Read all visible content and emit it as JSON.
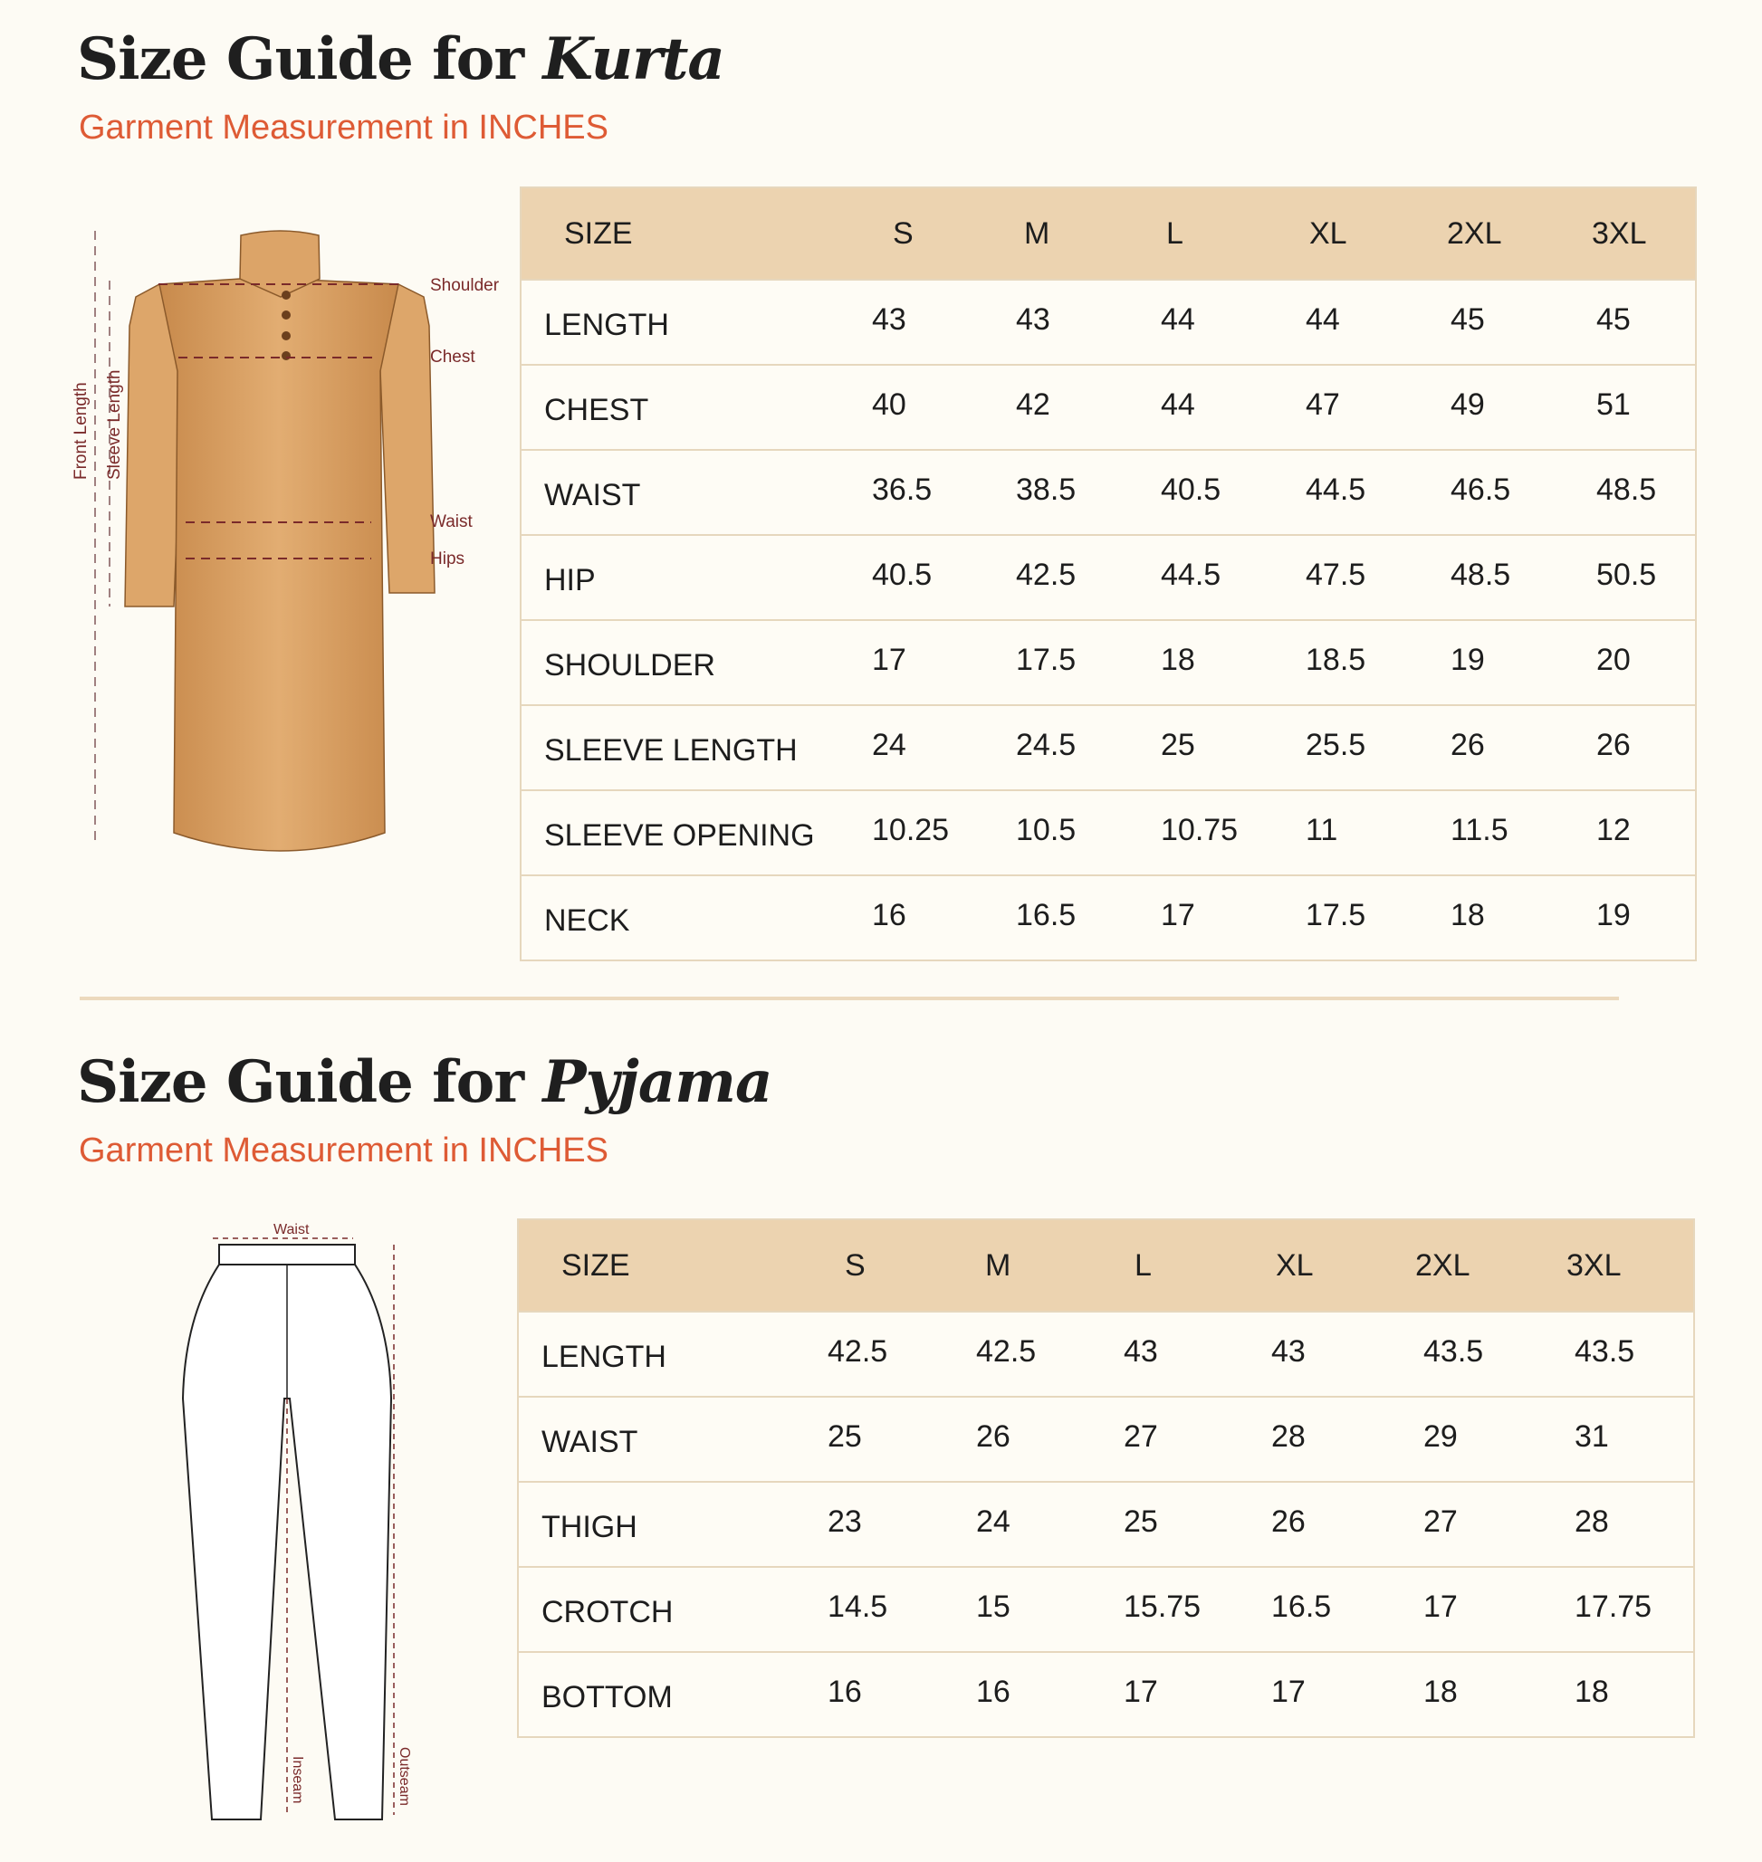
{
  "kurta": {
    "title_prefix": "Size Guide for ",
    "title_garment": "Kurta",
    "subtitle": "Garment Measurement in INCHES",
    "diagram_labels": {
      "shoulder": "Shoulder",
      "chest": "Chest",
      "waist": "Waist",
      "hips": "Hips",
      "front_length": "Front Length",
      "sleeve_length": "Sleeve Length"
    },
    "headers": [
      "SIZE",
      "S",
      "M",
      "L",
      "XL",
      "2XL",
      "3XL"
    ],
    "rows": [
      {
        "label": "LENGTH",
        "values": [
          "43",
          "43",
          "44",
          "44",
          "45",
          "45"
        ]
      },
      {
        "label": "CHEST",
        "values": [
          "40",
          "42",
          "44",
          "47",
          "49",
          "51"
        ]
      },
      {
        "label": "WAIST",
        "values": [
          "36.5",
          "38.5",
          "40.5",
          "44.5",
          "46.5",
          "48.5"
        ]
      },
      {
        "label": "HIP",
        "values": [
          "40.5",
          "42.5",
          "44.5",
          "47.5",
          "48.5",
          "50.5"
        ]
      },
      {
        "label": "SHOULDER",
        "values": [
          "17",
          "17.5",
          "18",
          "18.5",
          "19",
          "20"
        ]
      },
      {
        "label": "SLEEVE LENGTH",
        "values": [
          "24",
          "24.5",
          "25",
          "25.5",
          "26",
          "26"
        ]
      },
      {
        "label": "SLEEVE OPENING",
        "values": [
          "10.25",
          "10.5",
          "10.75",
          "11",
          "11.5",
          "12"
        ]
      },
      {
        "label": "NECK",
        "values": [
          "16",
          "16.5",
          "17",
          "17.5",
          "18",
          "19"
        ]
      }
    ]
  },
  "pyjama": {
    "title_prefix": "Size Guide for ",
    "title_garment": "Pyjama",
    "subtitle": "Garment Measurement in INCHES",
    "diagram_labels": {
      "waist": "Waist",
      "inseam": "Inseam",
      "outseam": "Outseam"
    },
    "headers": [
      "SIZE",
      "S",
      "M",
      "L",
      "XL",
      "2XL",
      "3XL"
    ],
    "rows": [
      {
        "label": "LENGTH",
        "values": [
          "42.5",
          "42.5",
          "43",
          "43",
          "43.5",
          "43.5"
        ]
      },
      {
        "label": "WAIST",
        "values": [
          "25",
          "26",
          "27",
          "28",
          "29",
          "31"
        ]
      },
      {
        "label": "THIGH",
        "values": [
          "23",
          "24",
          "25",
          "26",
          "27",
          "28"
        ]
      },
      {
        "label": "CROTCH",
        "values": [
          "14.5",
          "15",
          "15.75",
          "16.5",
          "17",
          "17.75"
        ]
      },
      {
        "label": "BOTTOM",
        "values": [
          "16",
          "16",
          "17",
          "17",
          "18",
          "18"
        ]
      }
    ]
  },
  "colors": {
    "accent": "#de5b35",
    "header_bg": "#ecd3b0",
    "border": "#e6d7bd",
    "kurta": "#d9a066",
    "annotation": "#7a2a2a"
  }
}
